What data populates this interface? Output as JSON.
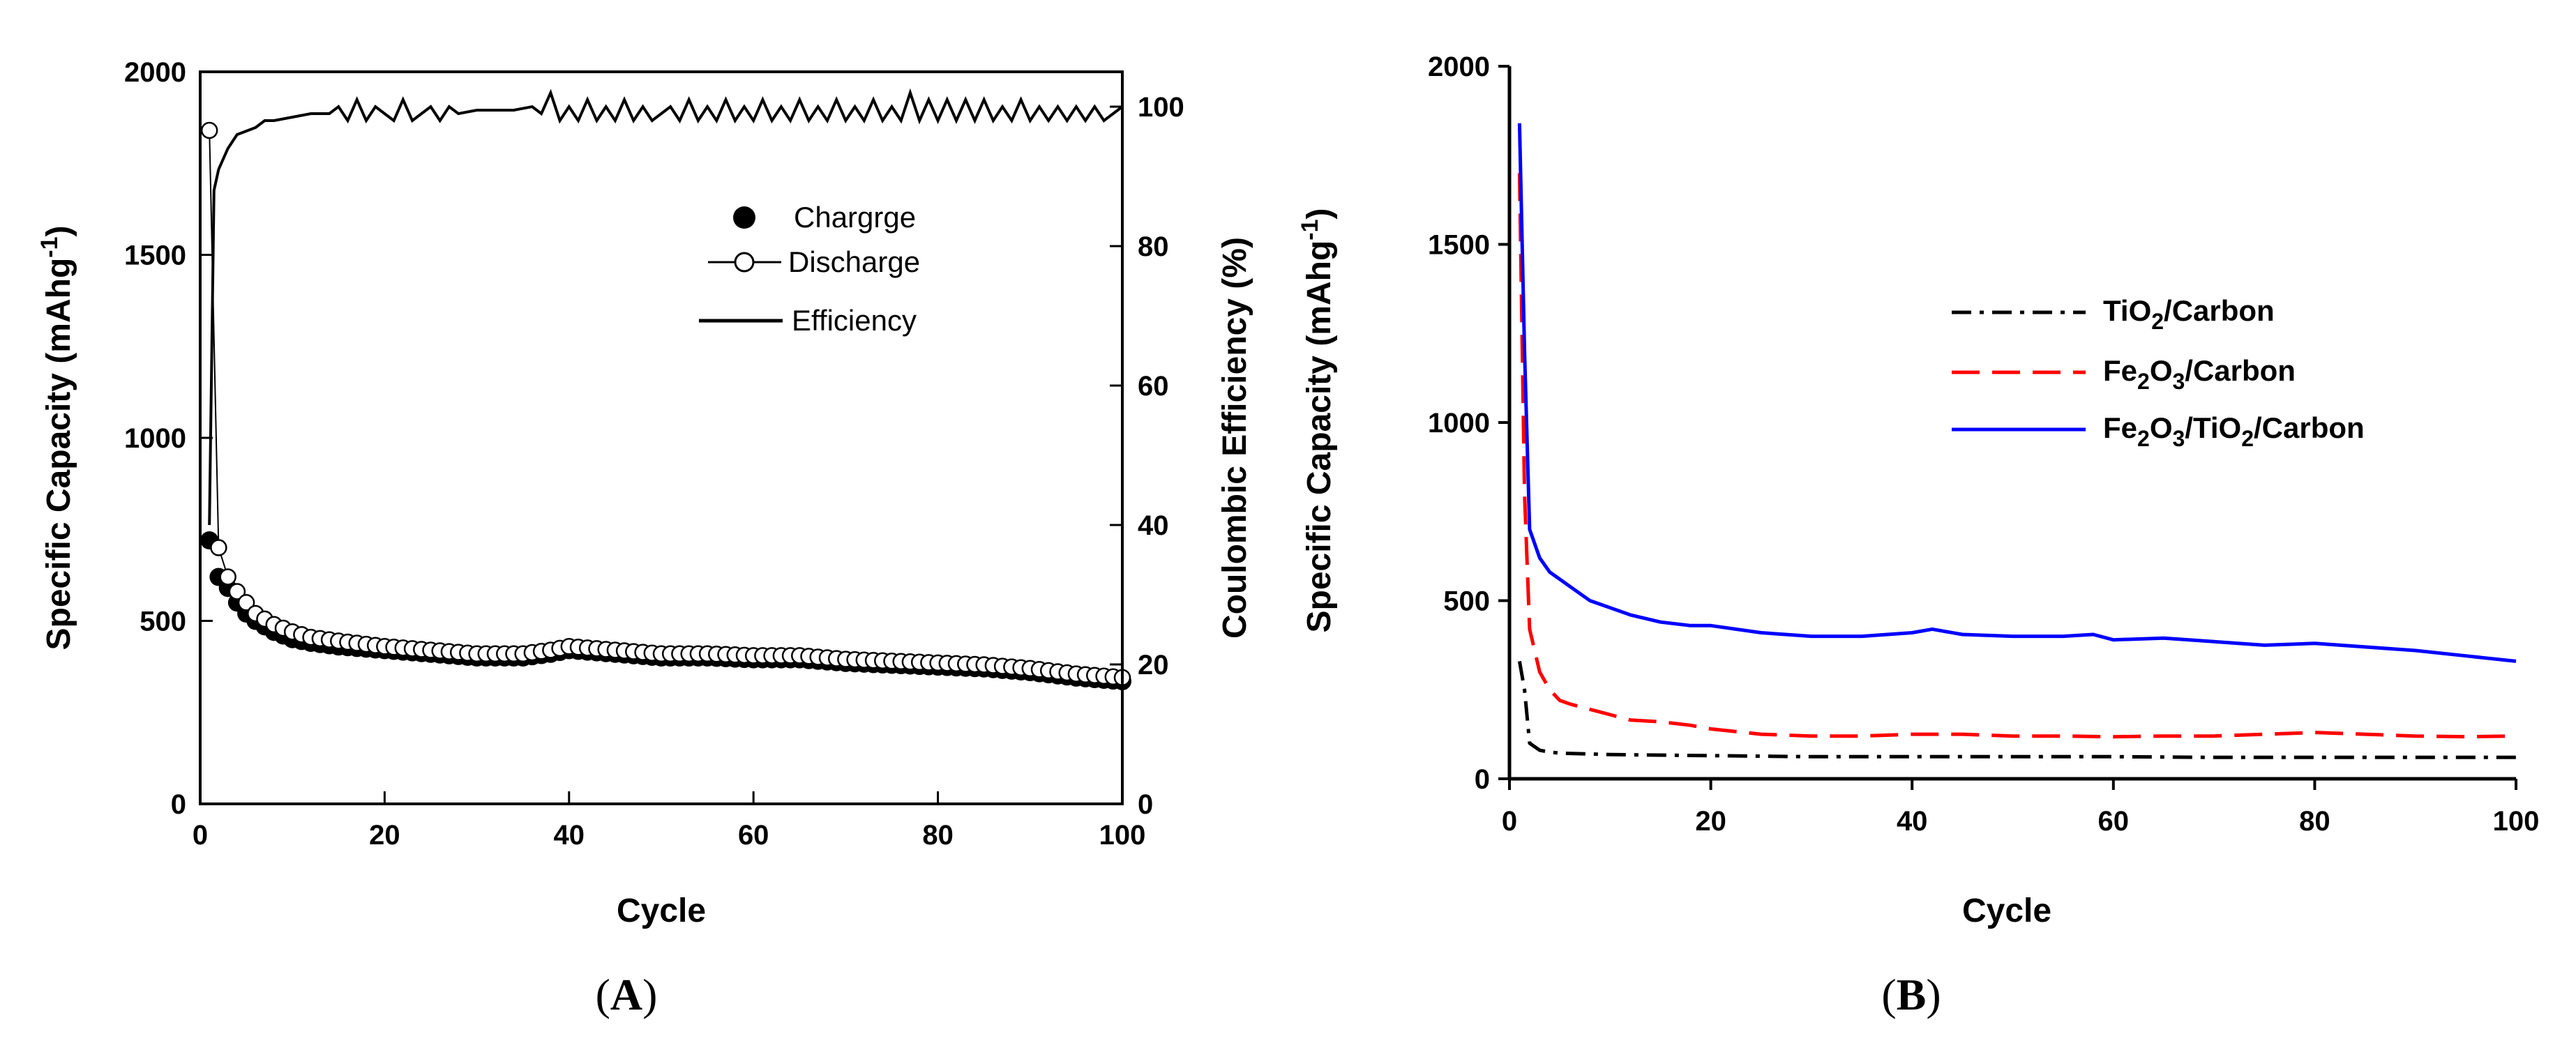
{
  "chart_data": [
    {
      "panel": "(A)",
      "type": "scatter",
      "title": "",
      "xlabel": "Cycle",
      "ylabel": "Specific Capacity (mAhg",
      "ylabel_sup": "-1",
      "ylabel_end": ")",
      "y2label": "Coulombic Efficiency (%)",
      "xlim": [
        0,
        100
      ],
      "ylim": [
        0,
        2000
      ],
      "y2lim": [
        0,
        105
      ],
      "xticks": [
        "0",
        "20",
        "40",
        "60",
        "80",
        "100"
      ],
      "yticks": [
        "0",
        "500",
        "1000",
        "1500",
        "2000"
      ],
      "y2ticks": [
        "0",
        "20",
        "40",
        "60",
        "80",
        "100"
      ],
      "grid": false,
      "legend_position": "upper-right",
      "legend": [
        "Chargrge",
        "Discharge",
        "Efficiency"
      ],
      "series": [
        {
          "name": "Chargrge",
          "marker": "filled-circle",
          "x": [
            1,
            2,
            3,
            4,
            5,
            6,
            8,
            10,
            12,
            15,
            20,
            25,
            30,
            35,
            38,
            40,
            45,
            50,
            55,
            60,
            65,
            70,
            75,
            80,
            85,
            90,
            95,
            100
          ],
          "y": [
            720,
            620,
            590,
            550,
            520,
            500,
            470,
            450,
            440,
            430,
            420,
            410,
            400,
            400,
            410,
            420,
            410,
            400,
            400,
            395,
            395,
            385,
            380,
            375,
            370,
            360,
            345,
            335
          ]
        },
        {
          "name": "Discharge",
          "marker": "open-circle",
          "x": [
            1,
            2,
            3,
            4,
            5,
            6,
            8,
            10,
            12,
            15,
            20,
            25,
            30,
            35,
            38,
            40,
            45,
            50,
            55,
            60,
            65,
            70,
            75,
            80,
            85,
            90,
            95,
            100
          ],
          "y": [
            1840,
            700,
            620,
            580,
            550,
            520,
            490,
            470,
            455,
            445,
            430,
            420,
            410,
            410,
            420,
            430,
            420,
            410,
            410,
            405,
            405,
            395,
            390,
            385,
            380,
            370,
            355,
            345
          ]
        },
        {
          "name": "Efficiency",
          "axis": "right",
          "line": "solid",
          "x": [
            1,
            1.5,
            2,
            3,
            4,
            5,
            6,
            7,
            8,
            10,
            12,
            14,
            15,
            16,
            17,
            18,
            19,
            20,
            21,
            22,
            23,
            24,
            25,
            26,
            27,
            28,
            30,
            32,
            34,
            36,
            37,
            38,
            39,
            40,
            41,
            42,
            43,
            44,
            45,
            46,
            47,
            48,
            49,
            50,
            51,
            52,
            53,
            54,
            55,
            56,
            57,
            58,
            59,
            60,
            61,
            62,
            63,
            64,
            65,
            66,
            67,
            68,
            69,
            70,
            71,
            72,
            73,
            74,
            75,
            76,
            77,
            78,
            79,
            80,
            81,
            82,
            83,
            84,
            85,
            86,
            87,
            88,
            89,
            90,
            91,
            92,
            93,
            94,
            95,
            96,
            97,
            98,
            99,
            100
          ],
          "y": [
            40,
            88,
            91,
            94,
            96,
            96.5,
            97,
            98,
            98,
            98.5,
            99,
            99,
            100,
            98,
            101,
            98,
            100,
            99,
            98,
            101,
            98,
            99,
            100,
            98,
            100,
            99,
            99.5,
            99.5,
            99.5,
            100,
            99,
            102,
            98,
            100,
            98,
            101,
            98,
            100,
            98,
            101,
            98,
            100,
            98,
            99,
            100,
            98,
            101,
            98,
            100,
            98,
            101,
            98,
            100,
            98,
            101,
            98,
            100,
            98,
            101,
            98,
            100,
            98,
            101,
            98,
            100,
            98,
            101,
            98,
            100,
            98,
            102,
            98,
            101,
            98,
            101,
            98,
            101,
            98,
            101,
            98,
            100,
            98,
            101,
            98,
            100,
            98,
            100,
            98,
            100,
            98,
            100,
            98,
            99,
            100
          ]
        }
      ]
    },
    {
      "panel": "(B)",
      "type": "line",
      "title": "",
      "xlabel": "Cycle",
      "ylabel": "Specific Capacity (mAhg",
      "ylabel_sup": "-1",
      "ylabel_end": ")",
      "xlim": [
        0,
        100
      ],
      "ylim": [
        0,
        2000
      ],
      "xticks": [
        "0",
        "20",
        "40",
        "60",
        "80",
        "100"
      ],
      "yticks": [
        "0",
        "500",
        "1000",
        "1500",
        "2000"
      ],
      "grid": false,
      "legend_position": "center-right",
      "series": [
        {
          "name": "TiO2/Carbon",
          "name_parts": [
            [
              "Ti",
              "O",
              "2",
              "/Carbon"
            ]
          ],
          "color": "#000000",
          "line": "dash-dot",
          "x": [
            1,
            1.5,
            2,
            3,
            4,
            5,
            10,
            20,
            30,
            40,
            50,
            60,
            70,
            80,
            90,
            100
          ],
          "y": [
            330,
            250,
            100,
            80,
            75,
            72,
            68,
            65,
            62,
            62,
            62,
            62,
            60,
            60,
            60,
            60
          ]
        },
        {
          "name": "Fe2O3/Carbon",
          "color": "#ff0000",
          "line": "dashed",
          "x": [
            1,
            1.5,
            2,
            3,
            4,
            5,
            6,
            8,
            10,
            12,
            15,
            18,
            20,
            25,
            30,
            35,
            40,
            45,
            50,
            55,
            60,
            65,
            70,
            75,
            80,
            85,
            90,
            95,
            100
          ],
          "y": [
            1700,
            800,
            420,
            300,
            250,
            220,
            210,
            195,
            180,
            165,
            160,
            150,
            140,
            125,
            120,
            120,
            125,
            125,
            120,
            120,
            118,
            120,
            120,
            125,
            130,
            125,
            120,
            118,
            120
          ]
        },
        {
          "name": "Fe2O3/TiO2/Carbon",
          "color": "#0000ff",
          "line": "solid",
          "x": [
            1,
            1.5,
            2,
            3,
            4,
            5,
            6,
            8,
            10,
            12,
            15,
            18,
            20,
            25,
            30,
            35,
            40,
            42,
            45,
            50,
            55,
            58,
            60,
            65,
            70,
            75,
            80,
            85,
            90,
            95,
            100
          ],
          "y": [
            1840,
            1200,
            700,
            620,
            580,
            560,
            540,
            500,
            480,
            460,
            440,
            430,
            430,
            410,
            400,
            400,
            410,
            420,
            405,
            400,
            400,
            405,
            390,
            395,
            385,
            375,
            380,
            370,
            360,
            345,
            330
          ]
        }
      ]
    }
  ]
}
